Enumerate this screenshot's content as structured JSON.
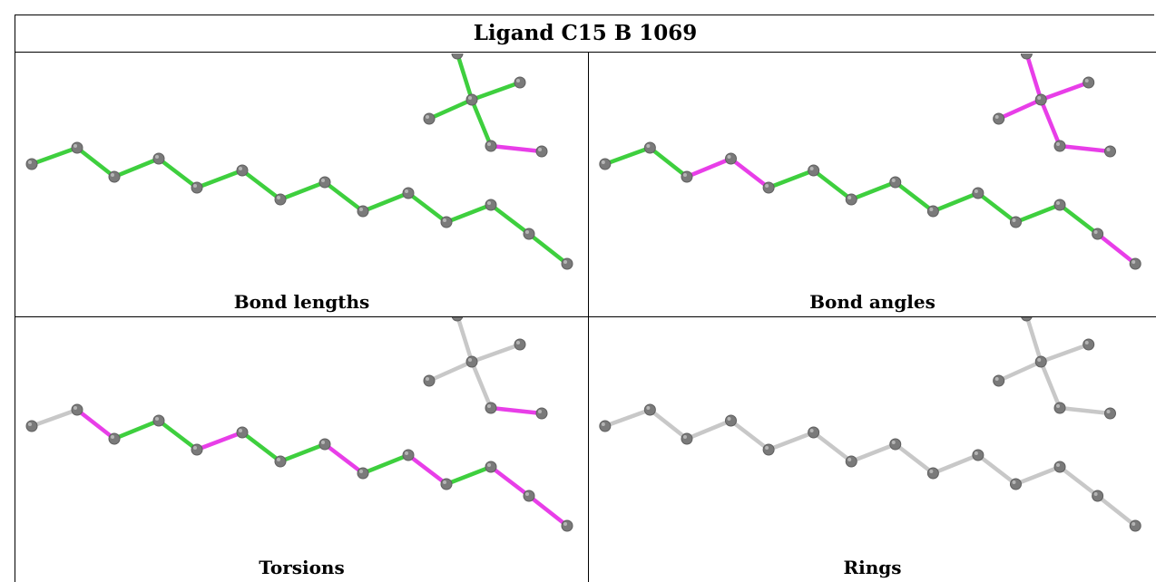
{
  "title": "Ligand C15 B 1069",
  "colors": {
    "ok": "#3ecf3e",
    "outlier": "#e83ee8",
    "neutral": "#c8c8c8",
    "atom": "#7a7a7a"
  },
  "panels": [
    {
      "caption": "Bond lengths",
      "bond_status": [
        "ok",
        "ok",
        "ok",
        "ok",
        "ok",
        "ok",
        "ok",
        "ok",
        "ok",
        "ok",
        "ok",
        "ok",
        "ok",
        "ok",
        "ok",
        "ok",
        "ok",
        "outlier",
        "ok"
      ]
    },
    {
      "caption": "Bond angles",
      "bond_status": [
        "ok",
        "ok",
        "outlier",
        "outlier",
        "ok",
        "ok",
        "ok",
        "ok",
        "ok",
        "ok",
        "ok",
        "ok",
        "outlier",
        "outlier",
        "outlier",
        "outlier",
        "outlier",
        "outlier",
        "outlier"
      ]
    },
    {
      "caption": "Torsions",
      "bond_status": [
        "neutral",
        "outlier",
        "ok",
        "ok",
        "outlier",
        "ok",
        "ok",
        "outlier",
        "ok",
        "outlier",
        "ok",
        "outlier",
        "outlier",
        "neutral",
        "neutral",
        "neutral",
        "neutral",
        "outlier",
        "neutral"
      ]
    },
    {
      "caption": "Rings",
      "bond_status": [
        "neutral",
        "neutral",
        "neutral",
        "neutral",
        "neutral",
        "neutral",
        "neutral",
        "neutral",
        "neutral",
        "neutral",
        "neutral",
        "neutral",
        "neutral",
        "neutral",
        "neutral",
        "neutral",
        "neutral",
        "neutral",
        "neutral"
      ]
    }
  ]
}
